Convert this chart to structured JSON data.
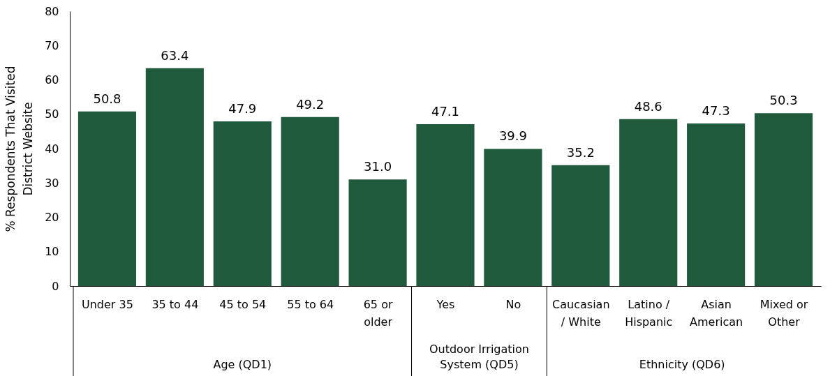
{
  "chart_data": {
    "type": "bar",
    "ylabel": "% Respondents That Visited District Website",
    "categories": [
      "Under 35",
      "35 to 44",
      "45 to 54",
      "55 to 64",
      "65 or older",
      "Yes",
      "No",
      "Caucasian / White",
      "Latino / Hispanic",
      "Asian American",
      "Mixed or Other"
    ],
    "values": [
      50.8,
      63.4,
      47.9,
      49.2,
      31.0,
      47.1,
      39.9,
      35.2,
      48.6,
      47.3,
      50.3
    ],
    "value_labels": [
      "50.8",
      "63.4",
      "47.9",
      "49.2",
      "31.0",
      "47.1",
      "39.9",
      "35.2",
      "48.6",
      "47.3",
      "50.3"
    ],
    "color": "#205a3c",
    "ylim": [
      0,
      80
    ],
    "yticks": [
      0,
      10,
      20,
      30,
      40,
      50,
      60,
      70,
      80
    ],
    "annotations": [
      "Age (QD1)",
      "Outdoor Irrigation System (QD5)",
      "Ethnicity (QD6)"
    ]
  }
}
